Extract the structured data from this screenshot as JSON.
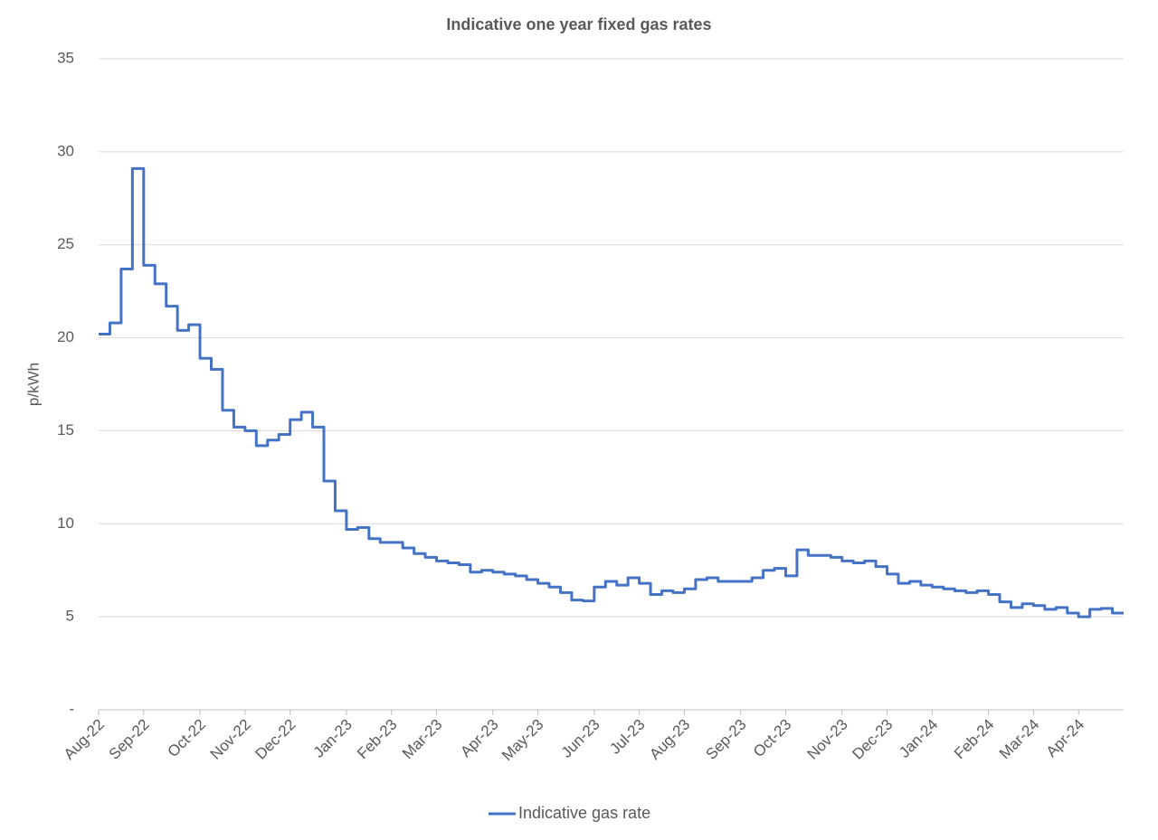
{
  "chart_data": {
    "type": "line",
    "title": "Indicative one year fixed gas rates",
    "y_label": "p/kWh",
    "categories": [
      "Aug-22",
      null,
      null,
      null,
      "Sep-22",
      null,
      null,
      null,
      null,
      "Oct-22",
      null,
      null,
      null,
      "Nov-22",
      null,
      null,
      null,
      "Dec-22",
      null,
      null,
      null,
      null,
      "Jan-23",
      null,
      null,
      null,
      "Feb-23",
      null,
      null,
      null,
      "Mar-23",
      null,
      null,
      null,
      null,
      "Apr-23",
      null,
      null,
      null,
      "May-23",
      null,
      null,
      null,
      null,
      "Jun-23",
      null,
      null,
      null,
      "Jul-23",
      null,
      null,
      null,
      "Aug-23",
      null,
      null,
      null,
      null,
      "Sep-23",
      null,
      null,
      null,
      "Oct-23",
      null,
      null,
      null,
      null,
      "Nov-23",
      null,
      null,
      null,
      "Dec-23",
      null,
      null,
      null,
      "Jan-24",
      null,
      null,
      null,
      null,
      "Feb-24",
      null,
      null,
      null,
      "Mar-24",
      null,
      null,
      null,
      "Apr-24",
      null,
      null,
      null
    ],
    "series": [
      {
        "name": "Indicative gas rate",
        "color": "#4472c4",
        "values": [
          20.2,
          20.8,
          23.7,
          29.1,
          23.9,
          22.9,
          21.7,
          20.4,
          20.7,
          18.9,
          18.3,
          16.1,
          15.2,
          15.0,
          14.2,
          14.5,
          14.8,
          15.6,
          16.0,
          15.2,
          12.3,
          10.7,
          9.7,
          9.8,
          9.2,
          9.0,
          9.0,
          8.7,
          8.4,
          8.2,
          8.0,
          7.9,
          7.8,
          7.4,
          7.5,
          7.4,
          7.3,
          7.2,
          7.0,
          6.8,
          6.6,
          6.3,
          5.9,
          5.85,
          6.6,
          6.9,
          6.7,
          7.1,
          6.8,
          6.2,
          6.4,
          6.3,
          6.5,
          7.0,
          7.1,
          6.9,
          6.9,
          6.9,
          7.1,
          7.5,
          7.6,
          7.2,
          8.6,
          8.3,
          8.3,
          8.2,
          8.0,
          7.9,
          8.0,
          7.7,
          7.3,
          6.8,
          6.9,
          6.7,
          6.6,
          6.5,
          6.4,
          6.3,
          6.4,
          6.2,
          5.8,
          5.5,
          5.7,
          5.6,
          5.4,
          5.5,
          5.2,
          5.0,
          5.4,
          5.45,
          5.2
        ]
      }
    ],
    "ylim": [
      0,
      35
    ],
    "yticks": [
      {
        "value": 0,
        "label": "-"
      },
      5,
      10,
      15,
      20,
      25,
      30,
      35
    ],
    "grid": true,
    "step": true,
    "legend": "bottom"
  }
}
